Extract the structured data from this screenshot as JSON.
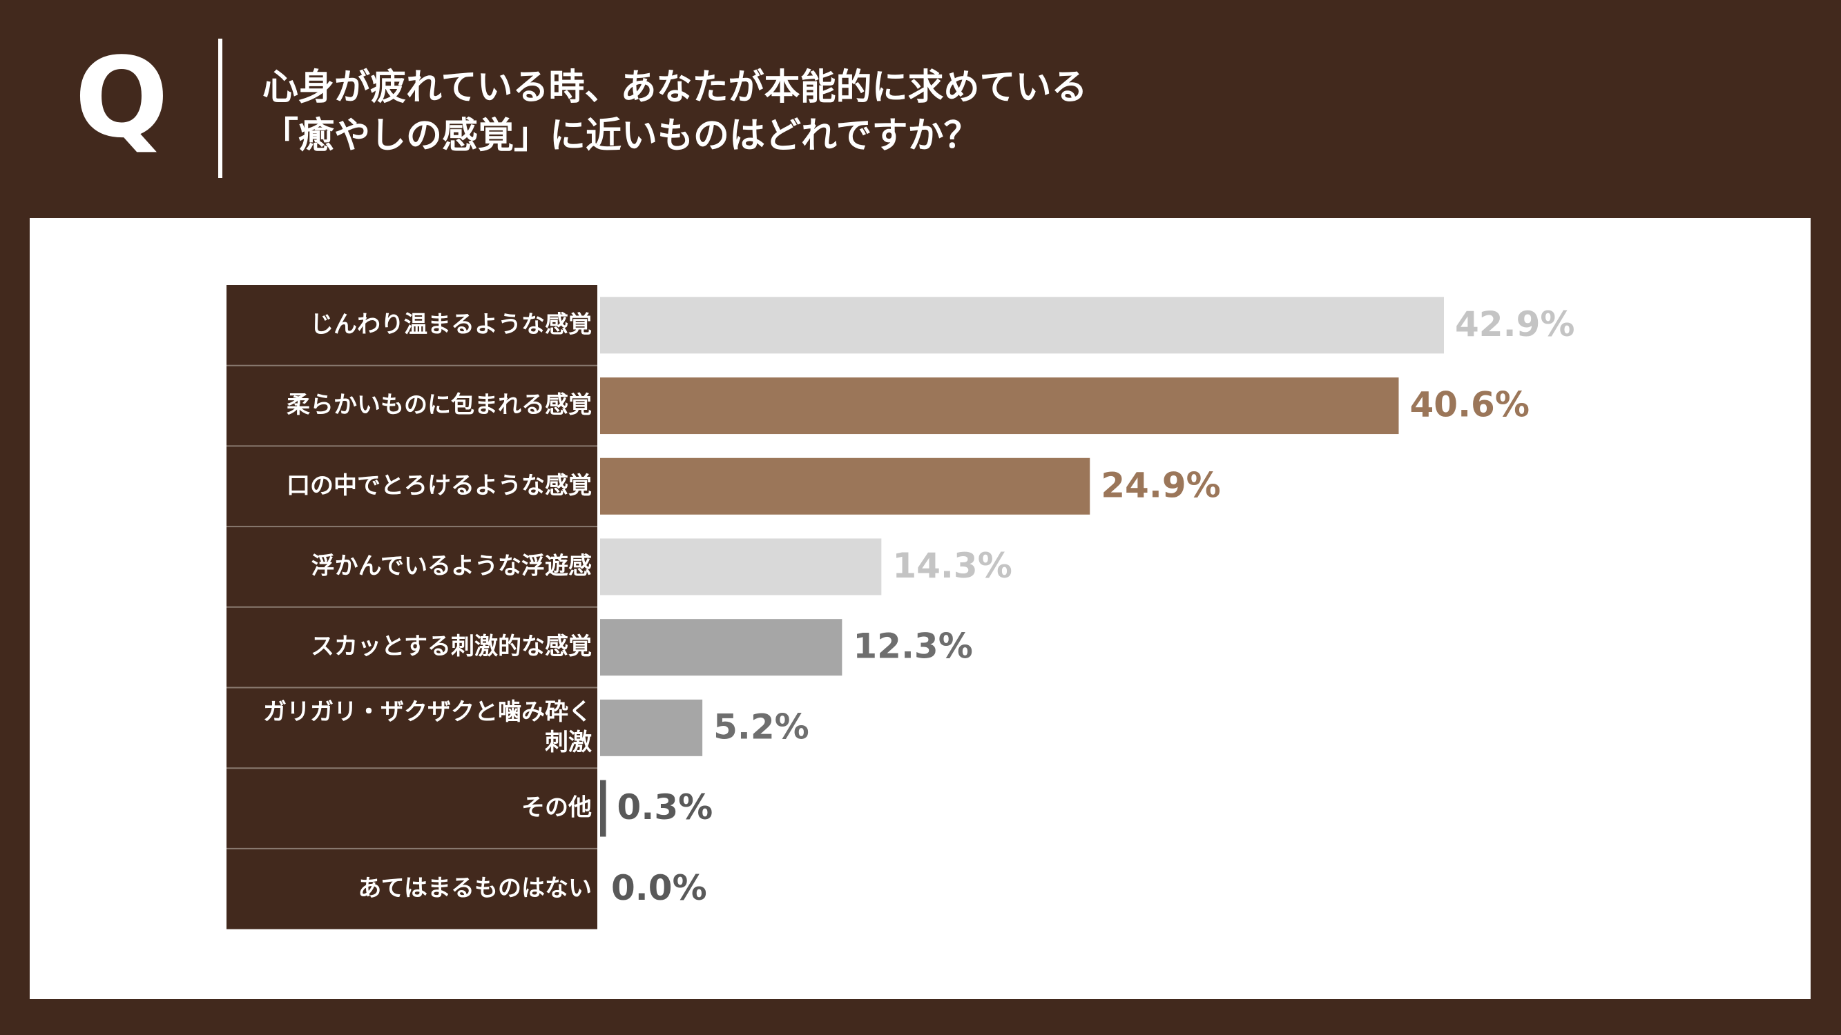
{
  "header": {
    "q_mark": "Q",
    "question_lines": [
      "心身が疲れている時、あなたが本能的に求めている",
      "「癒やしの感覚」に近いものはどれですか？"
    ]
  },
  "colors": {
    "background": "#42291d",
    "panel": "#ffffff",
    "label_cell": "#42291d",
    "row_divider": "#8a7a70",
    "light_gray": "#d9d9d9",
    "brown": "#9b7659",
    "mid_gray": "#a6a6a6",
    "dark_gray": "#595959"
  },
  "chart_data": {
    "type": "bar",
    "orientation": "horizontal",
    "categories": [
      [
        "じんわり温まるような感覚"
      ],
      [
        "柔らかいものに包まれる感覚"
      ],
      [
        "口の中でとろけるような感覚"
      ],
      [
        "浮かんでいるような浮遊感"
      ],
      [
        "スカッとする刺激的な感覚"
      ],
      [
        "ガリガリ・ザクザクと噛み砕く",
        "刺激"
      ],
      [
        "その他"
      ],
      [
        "あてはまるものはない"
      ]
    ],
    "values": [
      42.9,
      40.6,
      24.9,
      14.3,
      12.3,
      5.2,
      0.3,
      0.0
    ],
    "value_labels": [
      "42.9%",
      "40.6%",
      "24.9%",
      "14.3%",
      "12.3%",
      "5.2%",
      "0.3%",
      "0.0%"
    ],
    "bar_colors": [
      "#d9d9d9",
      "#9b7659",
      "#9b7659",
      "#d9d9d9",
      "#a6a6a6",
      "#a6a6a6",
      "#595959",
      "#595959"
    ],
    "label_colors": [
      "#c4c4c4",
      "#9b7659",
      "#9b7659",
      "#c4c4c4",
      "#6e6e6e",
      "#6e6e6e",
      "#595959",
      "#595959"
    ],
    "xlim": [
      0,
      50
    ]
  }
}
